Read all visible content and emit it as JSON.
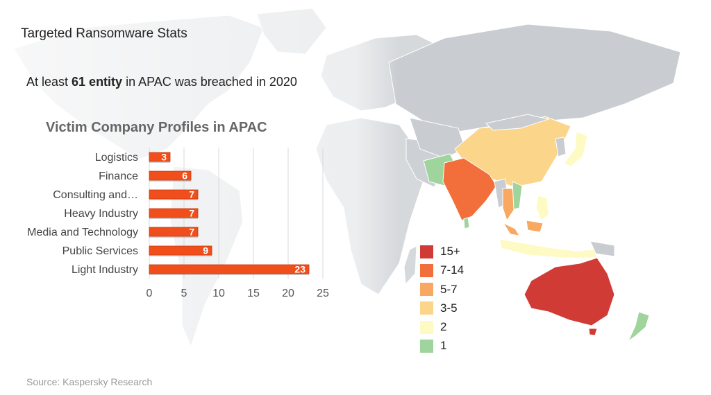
{
  "header": {
    "title": "Targeted Ransomware Stats",
    "headline_prefix": "At least ",
    "headline_bold": "61 entity",
    "headline_suffix": " in APAC was breached in 2020"
  },
  "chart_data": {
    "type": "bar",
    "orientation": "horizontal",
    "title": "Victim Company Profiles in APAC",
    "categories": [
      "Logistics",
      "Finance",
      "Consulting and…",
      "Heavy Industry",
      "Media and Technology",
      "Public Services",
      "Light Industry"
    ],
    "values": [
      3,
      6,
      7,
      7,
      7,
      9,
      23
    ],
    "xlim": [
      0,
      25
    ],
    "xticks": [
      "0",
      "5",
      "10",
      "15",
      "20",
      "25"
    ],
    "grid": true,
    "bar_color": "#f04e1a"
  },
  "map_legend": {
    "items": [
      {
        "label": "15+",
        "color": "#d13b36"
      },
      {
        "label": "7-14",
        "color": "#f26e3b"
      },
      {
        "label": "5-7",
        "color": "#f8a860"
      },
      {
        "label": "3-5",
        "color": "#fbd58a"
      },
      {
        "label": "2",
        "color": "#fdfbc3"
      },
      {
        "label": "1",
        "color": "#9fd49c"
      }
    ]
  },
  "footer": {
    "source": "Source: Kaspersky Research"
  }
}
